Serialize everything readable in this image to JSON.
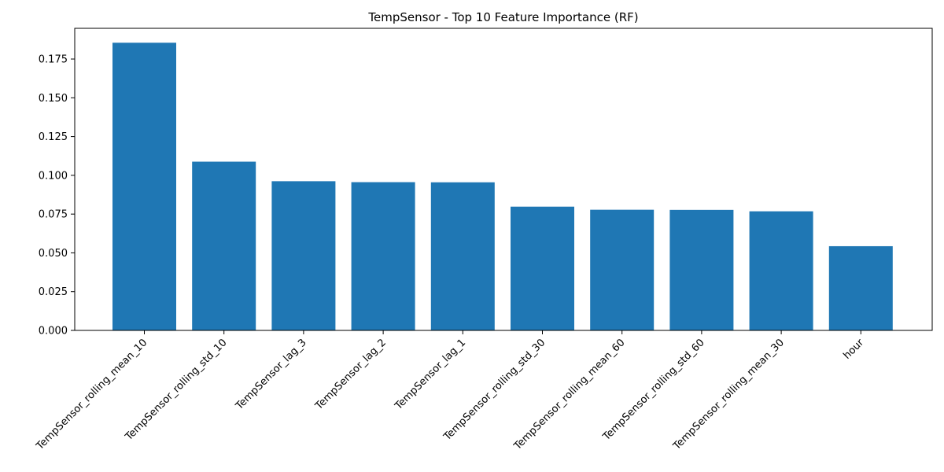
{
  "chart_data": {
    "type": "bar",
    "title": "TempSensor - Top 10 Feature Importance (RF)",
    "xlabel": "",
    "ylabel": "",
    "categories": [
      "TempSensor_rolling_mean_10",
      "TempSensor_rolling_std_10",
      "TempSensor_lag_3",
      "TempSensor_lag_2",
      "TempSensor_lag_1",
      "TempSensor_rolling_std_30",
      "TempSensor_rolling_mean_60",
      "TempSensor_rolling_std_60",
      "TempSensor_rolling_mean_30",
      "hour"
    ],
    "values": [
      0.1855,
      0.1088,
      0.0962,
      0.0956,
      0.0955,
      0.0798,
      0.0778,
      0.0777,
      0.0768,
      0.0543
    ],
    "ylim": [
      0,
      0.1948
    ],
    "yticks": [
      "0.000",
      "0.025",
      "0.050",
      "0.075",
      "0.100",
      "0.125",
      "0.150",
      "0.175"
    ],
    "grid": false,
    "legend": "none",
    "bar_color": "#1f77b4"
  }
}
